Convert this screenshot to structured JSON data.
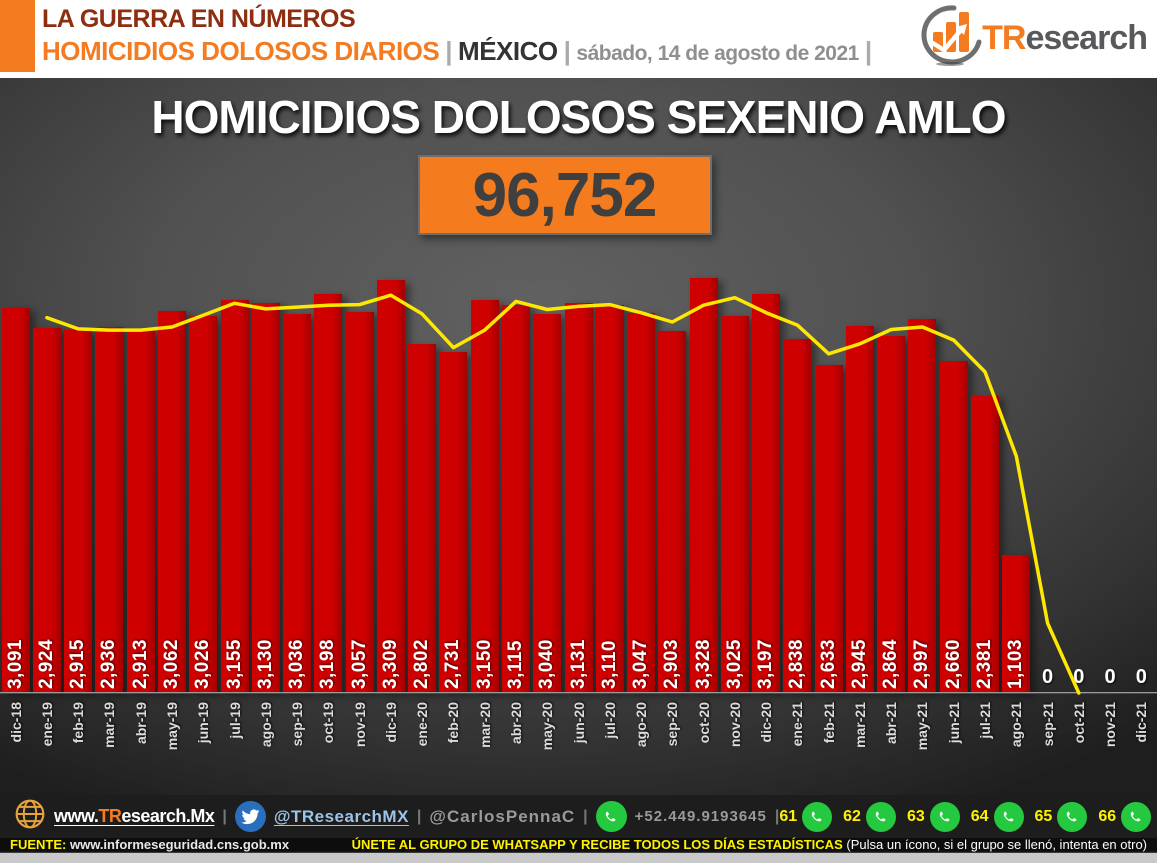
{
  "header": {
    "kicker": "LA GUERRA EN NÚMEROS",
    "title": "HOMICIDIOS DOLOSOS DIARIOS",
    "sep": "|",
    "country": "MÉXICO",
    "date": "sábado, 14 de agosto de 2021",
    "logo": {
      "orange": "TR",
      "gray": "esearch"
    }
  },
  "chart": {
    "title": "HOMICIDIOS DOLOSOS SEXENIO AMLO",
    "total_display": "96,752"
  },
  "chart_data": {
    "type": "bar",
    "title": "HOMICIDIOS DOLOSOS SEXENIO AMLO",
    "total": 96752,
    "categories": [
      "dic-18",
      "ene-19",
      "feb-19",
      "mar-19",
      "abr-19",
      "may-19",
      "jun-19",
      "jul-19",
      "ago-19",
      "sep-19",
      "oct-19",
      "nov-19",
      "dic-19",
      "ene-20",
      "feb-20",
      "mar-20",
      "abr-20",
      "may-20",
      "jun-20",
      "jul-20",
      "ago-20",
      "sep-20",
      "oct-20",
      "nov-20",
      "dic-20",
      "ene-21",
      "feb-21",
      "mar-21",
      "abr-21",
      "may-21",
      "jun-21",
      "jul-21",
      "ago-21",
      "sep-21",
      "oct-21",
      "nov-21",
      "dic-21"
    ],
    "values": [
      3091,
      2924,
      2915,
      2936,
      2913,
      3062,
      3026,
      3155,
      3130,
      3036,
      3198,
      3057,
      3309,
      2802,
      2731,
      3150,
      3115,
      3040,
      3131,
      3110,
      3047,
      2903,
      3328,
      3025,
      3197,
      2838,
      2633,
      2945,
      2864,
      2997,
      2660,
      2381,
      1103,
      0,
      0,
      0,
      0
    ],
    "trend_line": {
      "name": "tendencia",
      "color": "#FFE800",
      "values": [
        null,
        3010,
        2920,
        2910,
        2910,
        2935,
        3030,
        3125,
        3080,
        3095,
        3110,
        3115,
        3190,
        3040,
        2770,
        2910,
        3140,
        3075,
        3100,
        3115,
        3050,
        2975,
        3110,
        3170,
        3050,
        2950,
        2720,
        2800,
        2915,
        2935,
        2830,
        2575,
        1900,
        560,
        0,
        null,
        null
      ]
    },
    "bar_color": "#CE0000",
    "label_color": "#FFFFFF",
    "ylim": [
      0,
      3530
    ],
    "grid": false,
    "legend": false,
    "baseline_color": "#9a9a9a"
  },
  "footer": {
    "website": {
      "prefix": "www.",
      "highlight": "TR",
      "rest": "esearch.Mx"
    },
    "sep": "|",
    "twitter_handle": "@TResearchMX",
    "second_handle": "@CarlosPennaC",
    "phone": "+52.449.9193645",
    "whatsapp_groups": [
      "61",
      "62",
      "63",
      "64",
      "65",
      "66"
    ],
    "source_label": "FUENTE:",
    "source_url": "www.informeseguridad.cns.gob.mx",
    "cta_yellow": "ÚNETE AL GRUPO DE WHATSAPP Y RECIBE TODOS LOS DÍAS ESTADÍSTICAS",
    "cta_white": "(Pulsa un ícono, si el grupo se llenó, intenta en otro)"
  },
  "icons": {
    "logo": "bar-chart-swoosh-icon",
    "globe": "globe-icon",
    "twitter": "twitter-bird-icon",
    "whatsapp": "whatsapp-icon"
  },
  "colors": {
    "accent_orange": "#F47B20",
    "bar_red": "#CE0000",
    "trend_yellow": "#FFE800",
    "kicker_brown": "#8C2E0F",
    "footer_yellow": "#FFF200",
    "twitter_blue": "#2A6FBF",
    "whatsapp_green": "#25C940"
  }
}
